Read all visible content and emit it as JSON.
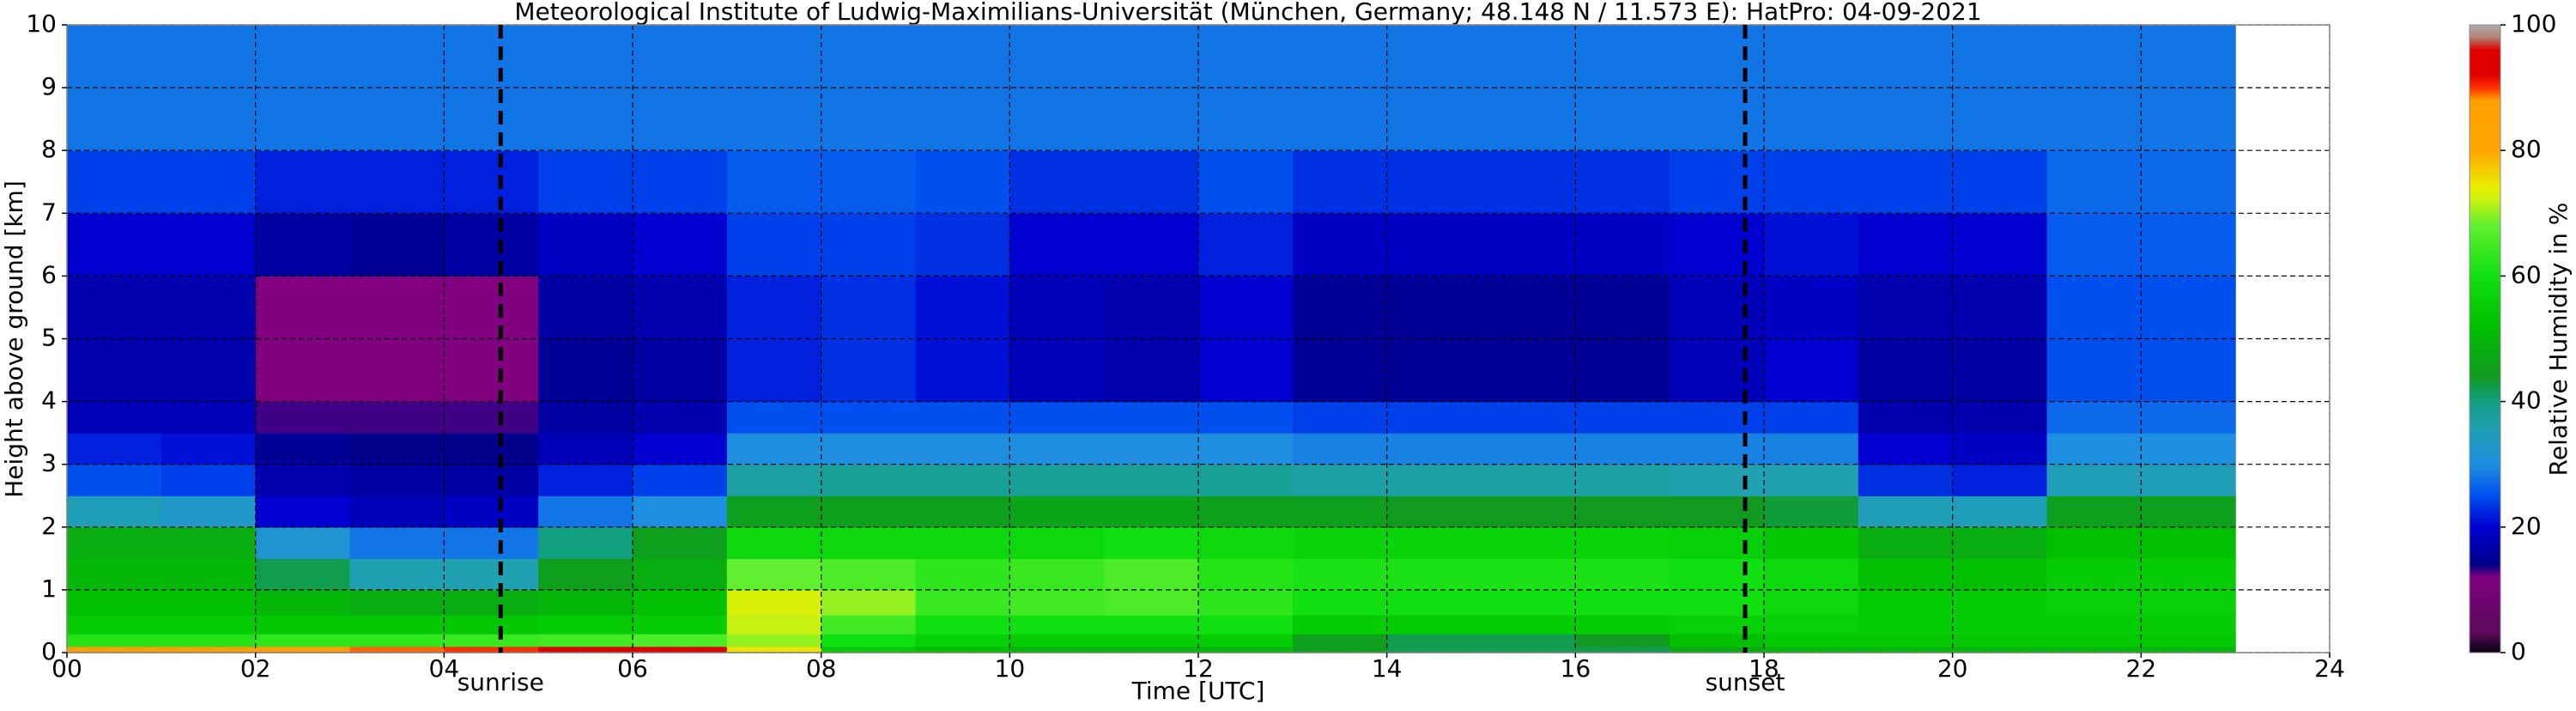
{
  "chart_data": {
    "type": "heatmap",
    "title": "Meteorological Institute of Ludwig-Maximilians-Universität (München, Germany; 48.148 N / 11.573 E):    HatPro: 04-09-2021",
    "x_label": "Time [UTC]",
    "y_label": "Height above ground [km]",
    "colorbar_label": "Relative Humidity in %",
    "xlim": [
      0,
      24
    ],
    "xticks": [
      {
        "value": 0,
        "label": "00"
      },
      {
        "value": 2,
        "label": "02"
      },
      {
        "value": 4,
        "label": "04"
      },
      {
        "value": 6,
        "label": "06"
      },
      {
        "value": 8,
        "label": "08"
      },
      10,
      12,
      14,
      16,
      18,
      20,
      22,
      24
    ],
    "ylim": [
      0,
      10
    ],
    "yticks": [
      0,
      1,
      2,
      3,
      4,
      5,
      6,
      7,
      8,
      9,
      10
    ],
    "clim": [
      0,
      100
    ],
    "cticks": [
      0,
      20,
      40,
      60,
      80,
      100
    ],
    "grid": true,
    "x_bins": [
      0,
      1,
      2,
      3,
      4,
      5,
      6,
      7,
      8,
      9,
      10,
      11,
      12,
      13,
      14,
      15,
      16,
      17,
      18,
      19,
      20,
      21,
      22,
      23
    ],
    "y_bins": [
      0,
      0.1,
      0.3,
      0.6,
      1,
      1.5,
      2,
      2.5,
      3,
      3.5,
      4,
      5,
      6,
      7,
      8,
      10
    ],
    "z": [
      [
        88,
        62,
        55,
        52,
        50,
        48,
        35,
        25,
        22,
        18,
        17,
        17,
        20,
        24,
        28
      ],
      [
        88,
        62,
        55,
        52,
        50,
        48,
        33,
        24,
        21,
        18,
        17,
        17,
        20,
        24,
        28
      ],
      [
        88,
        63,
        54,
        50,
        42,
        32,
        20,
        17,
        15,
        13,
        12,
        12,
        16,
        22,
        28
      ],
      [
        89,
        63,
        54,
        48,
        36,
        28,
        18,
        16,
        14,
        13,
        12,
        12,
        15,
        22,
        28
      ],
      [
        90,
        64,
        54,
        48,
        36,
        28,
        19,
        16,
        14,
        13,
        12,
        12,
        16,
        22,
        28
      ],
      [
        92,
        65,
        55,
        50,
        45,
        40,
        28,
        22,
        18,
        16,
        15,
        16,
        19,
        24,
        28
      ],
      [
        92,
        66,
        55,
        52,
        48,
        45,
        30,
        24,
        20,
        17,
        16,
        17,
        20,
        24,
        28
      ],
      [
        75,
        70,
        72,
        73,
        68,
        58,
        45,
        37,
        30,
        25,
        22,
        22,
        24,
        26,
        28
      ],
      [
        55,
        60,
        65,
        70,
        66,
        58,
        45,
        38,
        30,
        25,
        23,
        23,
        24,
        26,
        28
      ],
      [
        52,
        56,
        60,
        64,
        63,
        58,
        45,
        38,
        30,
        25,
        21,
        21,
        23,
        25,
        28
      ],
      [
        50,
        55,
        60,
        65,
        64,
        58,
        46,
        38,
        30,
        25,
        18,
        18,
        20,
        23,
        28
      ],
      [
        50,
        55,
        60,
        66,
        66,
        60,
        46,
        38,
        30,
        25,
        17,
        17,
        20,
        23,
        28
      ],
      [
        50,
        55,
        60,
        63,
        62,
        58,
        45,
        38,
        30,
        25,
        20,
        20,
        22,
        25,
        28
      ],
      [
        45,
        45,
        55,
        60,
        61,
        57,
        45,
        37,
        29,
        24,
        15,
        15,
        19,
        23,
        28
      ],
      [
        42,
        42,
        55,
        60,
        61,
        57,
        44,
        37,
        29,
        24,
        15,
        15,
        19,
        23,
        28
      ],
      [
        42,
        42,
        55,
        60,
        61,
        57,
        44,
        37,
        29,
        24,
        15,
        15,
        19,
        23,
        28
      ],
      [
        42,
        44,
        55,
        60,
        61,
        57,
        44,
        37,
        29,
        24,
        15,
        15,
        19,
        23,
        28
      ],
      [
        48,
        52,
        56,
        60,
        60,
        56,
        44,
        36,
        29,
        24,
        18,
        18,
        20,
        24,
        28
      ],
      [
        50,
        54,
        56,
        58,
        58,
        54,
        43,
        36,
        29,
        24,
        20,
        19,
        21,
        24,
        28
      ],
      [
        50,
        54,
        55,
        55,
        52,
        48,
        35,
        23,
        20,
        17,
        16,
        17,
        20,
        24,
        28
      ],
      [
        50,
        54,
        55,
        55,
        52,
        48,
        35,
        22,
        19,
        17,
        16,
        17,
        20,
        24,
        28
      ],
      [
        50,
        54,
        55,
        56,
        55,
        52,
        45,
        35,
        30,
        27,
        25,
        25,
        26,
        27,
        28
      ],
      [
        50,
        54,
        55,
        56,
        55,
        52,
        45,
        35,
        30,
        27,
        25,
        25,
        26,
        27,
        28
      ]
    ],
    "colorscale": [
      [
        0,
        "#050010"
      ],
      [
        3,
        "#5a0a5a"
      ],
      [
        12,
        "#800080"
      ],
      [
        14,
        "#00008b"
      ],
      [
        20,
        "#0000d0"
      ],
      [
        25,
        "#0050f0"
      ],
      [
        30,
        "#1e8ee0"
      ],
      [
        36,
        "#20a0b0"
      ],
      [
        40,
        "#10a080"
      ],
      [
        44,
        "#109a20"
      ],
      [
        52,
        "#00c000"
      ],
      [
        60,
        "#10e010"
      ],
      [
        68,
        "#60f030"
      ],
      [
        72,
        "#c8f010"
      ],
      [
        74,
        "#e8f000"
      ],
      [
        80,
        "#ffa500"
      ],
      [
        88,
        "#ffa000"
      ],
      [
        90,
        "#ff3000"
      ],
      [
        92,
        "#e00000"
      ],
      [
        96,
        "#e00000"
      ],
      [
        98,
        "#b08070"
      ],
      [
        100,
        "#b0b0b0"
      ]
    ],
    "events": [
      {
        "x": 4.6,
        "label": "sunrise"
      },
      {
        "x": 17.8,
        "label": "sunset"
      }
    ]
  }
}
